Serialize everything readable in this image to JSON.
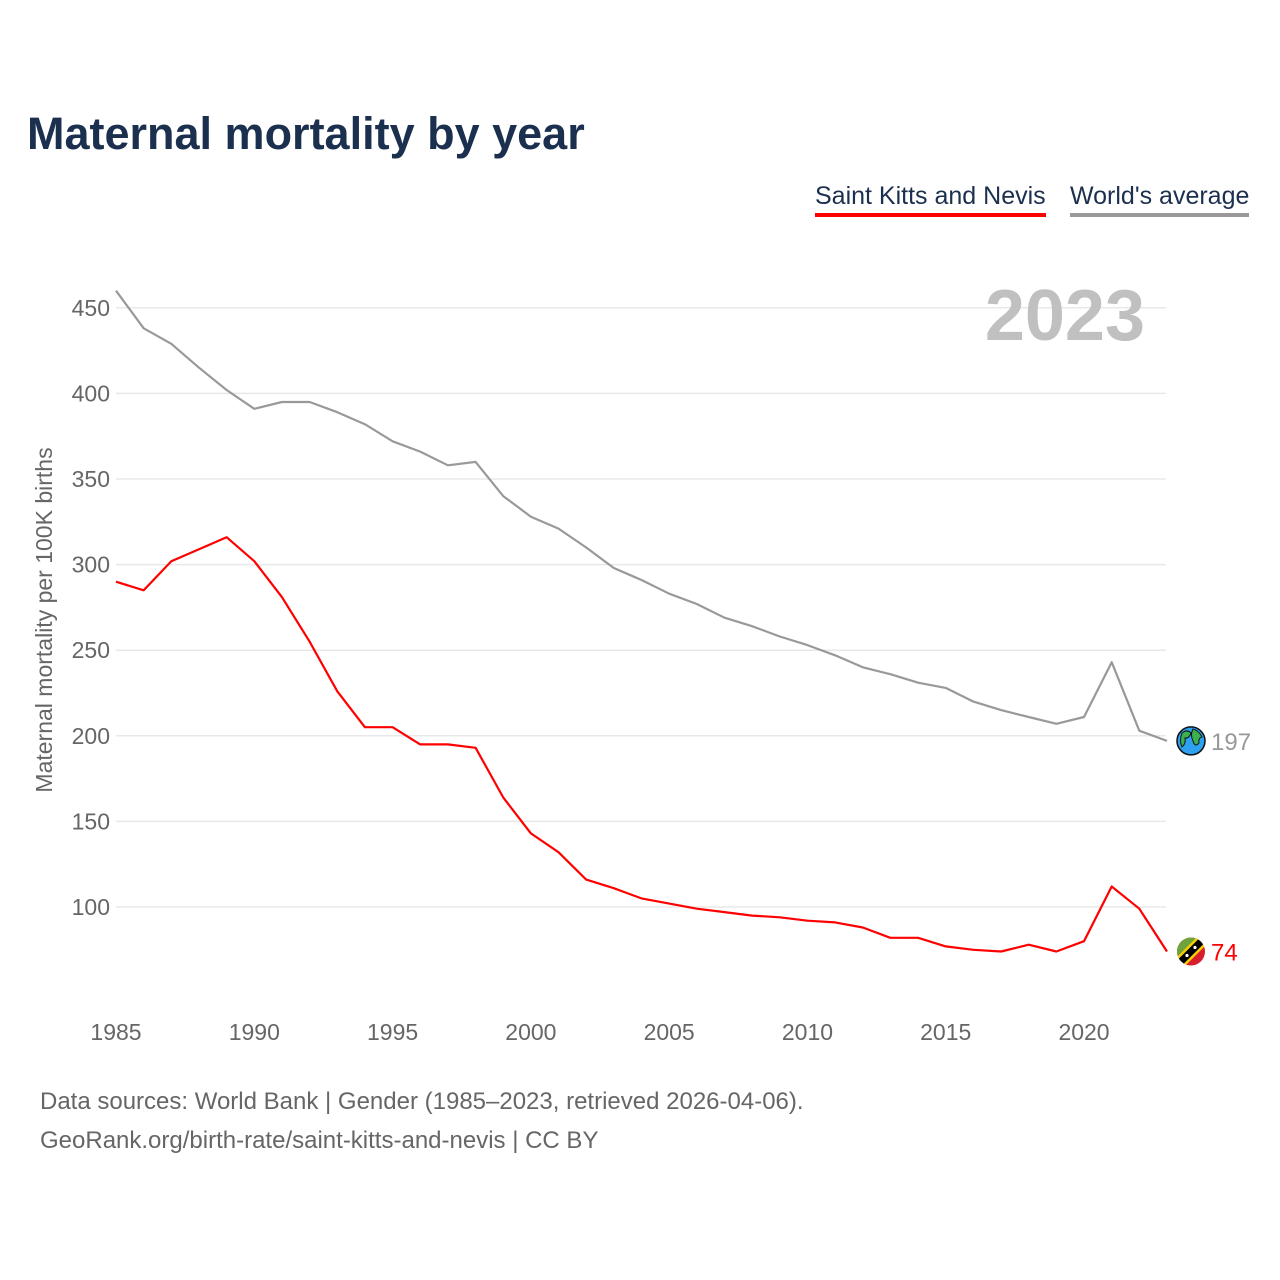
{
  "chart_data": {
    "type": "line",
    "title": "Maternal mortality by year",
    "ylabel": "Maternal mortality per 100K births",
    "xlabel": "",
    "year_label": "2023",
    "xlim": [
      1985,
      2023
    ],
    "ylim": [
      45,
      460
    ],
    "x_ticks": [
      1985,
      1990,
      1995,
      2000,
      2005,
      2010,
      2015,
      2020
    ],
    "y_ticks": [
      100,
      150,
      200,
      250,
      300,
      350,
      400,
      450
    ],
    "grid": true,
    "legend_position": "top-right",
    "x": [
      1985,
      1986,
      1987,
      1988,
      1989,
      1990,
      1991,
      1992,
      1993,
      1994,
      1995,
      1996,
      1997,
      1998,
      1999,
      2000,
      2001,
      2002,
      2003,
      2004,
      2005,
      2006,
      2007,
      2008,
      2009,
      2010,
      2011,
      2012,
      2013,
      2014,
      2015,
      2016,
      2017,
      2018,
      2019,
      2020,
      2021,
      2022,
      2023
    ],
    "series": [
      {
        "name": "Saint Kitts and Nevis",
        "color": "#ff0000",
        "end_label": "74",
        "end_icon": "saint-kitts-flag-icon",
        "values": [
          290,
          285,
          302,
          309,
          316,
          302,
          281,
          255,
          226,
          205,
          205,
          195,
          195,
          193,
          164,
          143,
          132,
          116,
          111,
          105,
          102,
          99,
          97,
          95,
          94,
          92,
          91,
          88,
          82,
          82,
          77,
          75,
          74,
          78,
          74,
          80,
          112,
          99,
          74
        ]
      },
      {
        "name": "World's average",
        "color": "#999999",
        "end_label": "197",
        "end_icon": "globe-icon",
        "values": [
          460,
          438,
          429,
          415,
          402,
          391,
          395,
          395,
          389,
          382,
          372,
          366,
          358,
          360,
          340,
          328,
          321,
          310,
          298,
          291,
          283,
          277,
          269,
          264,
          258,
          253,
          247,
          240,
          236,
          231,
          228,
          220,
          215,
          211,
          207,
          211,
          243,
          203,
          197
        ]
      }
    ]
  },
  "footer": {
    "line1": "Data sources: World Bank | Gender (1985–2023, retrieved 2026-04-06).",
    "line2": "GeoRank.org/birth-rate/saint-kitts-and-nevis | CC BY"
  }
}
